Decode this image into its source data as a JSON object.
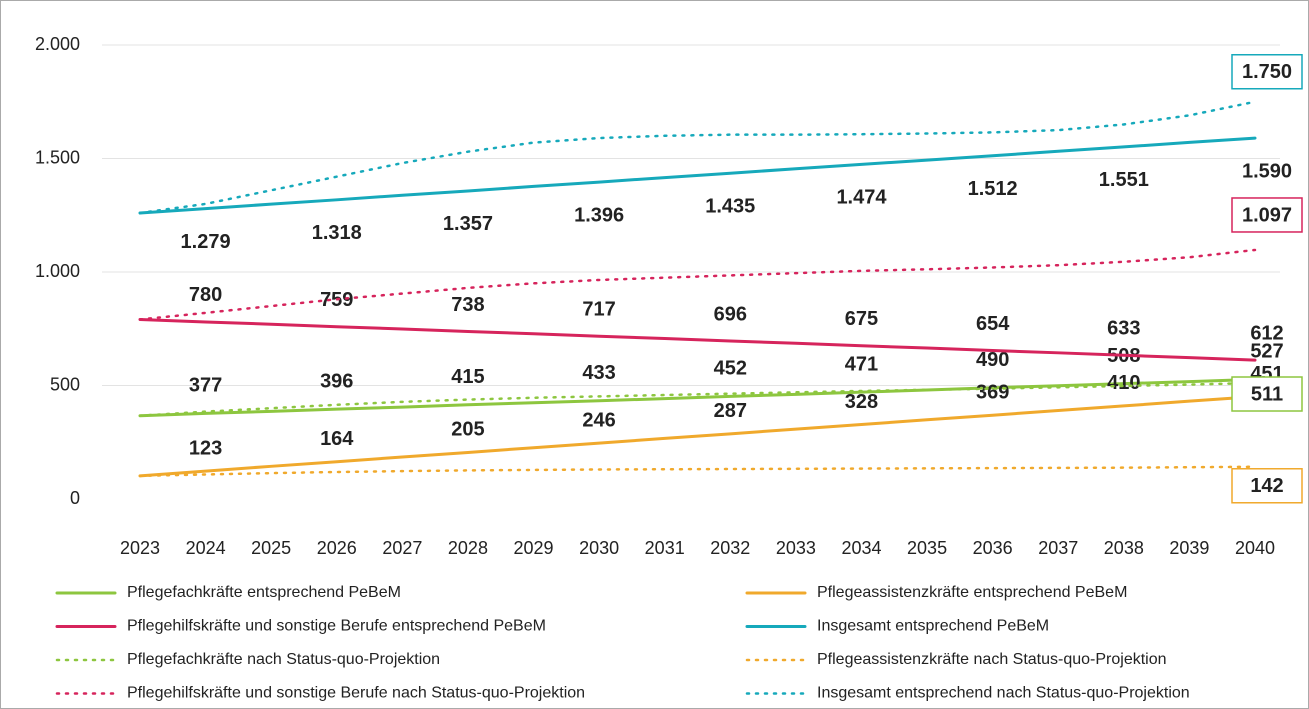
{
  "chart_data": {
    "type": "line",
    "x": [
      2023,
      2024,
      2025,
      2026,
      2027,
      2028,
      2029,
      2030,
      2031,
      2032,
      2033,
      2034,
      2035,
      2036,
      2037,
      2038,
      2039,
      2040
    ],
    "xlim": [
      2023,
      2040
    ],
    "ylim": [
      0,
      2000
    ],
    "yticks": [
      0,
      500,
      {
        "value": 1000,
        "label": "1.000"
      },
      {
        "value": 1500,
        "label": "1.500"
      },
      {
        "value": 2000,
        "label": "2.000"
      }
    ],
    "grid": true,
    "series": [
      {
        "name": "Pflegefachkräfte entsprechend PeBeM",
        "color": "#8dc63f",
        "dash": "solid",
        "values": [
          367,
          377,
          386,
          396,
          405,
          415,
          424,
          433,
          442,
          452,
          461,
          471,
          480,
          490,
          499,
          508,
          517,
          527
        ],
        "value_labels": [
          null,
          "377",
          null,
          "396",
          null,
          "415",
          null,
          "433",
          null,
          "452",
          null,
          "471",
          null,
          "490",
          null,
          "508",
          null,
          "527"
        ]
      },
      {
        "name": "Pflegeassistenzkräfte entsprechend PeBeM",
        "color": "#f0a92c",
        "dash": "solid",
        "values": [
          102,
          123,
          144,
          164,
          185,
          205,
          226,
          246,
          267,
          287,
          308,
          328,
          349,
          369,
          390,
          410,
          431,
          451
        ],
        "value_labels": [
          null,
          "123",
          null,
          "164",
          null,
          "205",
          null,
          "246",
          null,
          "287",
          null,
          "328",
          null,
          "369",
          null,
          "410",
          null,
          "451"
        ]
      },
      {
        "name": "Pflegehilfskräfte und sonstige Berufe entsprechend PeBeM",
        "color": "#d6245c",
        "dash": "solid",
        "values": [
          791,
          780,
          770,
          759,
          749,
          738,
          728,
          717,
          707,
          696,
          686,
          675,
          665,
          654,
          644,
          633,
          623,
          612
        ],
        "value_labels": [
          null,
          "780",
          null,
          "759",
          null,
          "738",
          null,
          "717",
          null,
          "696",
          null,
          "675",
          null,
          "654",
          null,
          "633",
          null,
          "612"
        ]
      },
      {
        "name": "Insgesamt entsprechend PeBeM",
        "color": "#16a9bb",
        "dash": "solid",
        "values": [
          1260,
          1279,
          1299,
          1318,
          1338,
          1357,
          1377,
          1396,
          1416,
          1435,
          1455,
          1474,
          1493,
          1512,
          1532,
          1551,
          1571,
          1590
        ],
        "value_labels": [
          null,
          "1.279",
          null,
          "1.318",
          null,
          "1.357",
          null,
          "1.396",
          null,
          "1.435",
          null,
          "1.474",
          null,
          "1.512",
          null,
          "1.551",
          null,
          "1.590"
        ]
      },
      {
        "name": "Pflegefachkräfte nach Status-quo-Projektion",
        "color": "#8dc63f",
        "dash": "dotted",
        "values": [
          367,
          385,
          400,
          415,
          428,
          438,
          446,
          452,
          458,
          464,
          470,
          476,
          481,
          486,
          492,
          498,
          504,
          511
        ],
        "value_labels": [
          null,
          null,
          null,
          null,
          null,
          null,
          null,
          null,
          null,
          null,
          null,
          null,
          null,
          null,
          null,
          null,
          null,
          "511"
        ]
      },
      {
        "name": "Pflegeassistenzkräfte nach Status-quo-Projektion",
        "color": "#f0a92c",
        "dash": "dotted",
        "values": [
          102,
          108,
          114,
          119,
          123,
          126,
          128,
          130,
          131,
          132,
          133,
          134,
          135,
          136,
          137,
          138,
          140,
          142
        ],
        "value_labels": [
          null,
          null,
          null,
          null,
          null,
          null,
          null,
          null,
          null,
          null,
          null,
          null,
          null,
          null,
          null,
          null,
          null,
          "142"
        ]
      },
      {
        "name": "Pflegehilfskräfte und sonstige Berufe nach Status-quo-Projektion",
        "color": "#d6245c",
        "dash": "dotted",
        "values": [
          791,
          820,
          850,
          880,
          905,
          930,
          950,
          965,
          975,
          985,
          995,
          1005,
          1012,
          1020,
          1030,
          1045,
          1065,
          1097
        ],
        "value_labels": [
          null,
          null,
          null,
          null,
          null,
          null,
          null,
          null,
          null,
          null,
          null,
          null,
          null,
          null,
          null,
          null,
          null,
          "1.097"
        ]
      },
      {
        "name": "Insgesamt entsprechend nach Status-quo-Projektion",
        "color": "#16a9bb",
        "dash": "dotted",
        "values": [
          1260,
          1300,
          1360,
          1420,
          1480,
          1530,
          1570,
          1590,
          1600,
          1605,
          1605,
          1607,
          1610,
          1615,
          1625,
          1650,
          1690,
          1750
        ],
        "value_labels": [
          null,
          null,
          null,
          null,
          null,
          null,
          null,
          null,
          null,
          null,
          null,
          null,
          null,
          null,
          null,
          null,
          null,
          "1.750"
        ]
      }
    ]
  }
}
